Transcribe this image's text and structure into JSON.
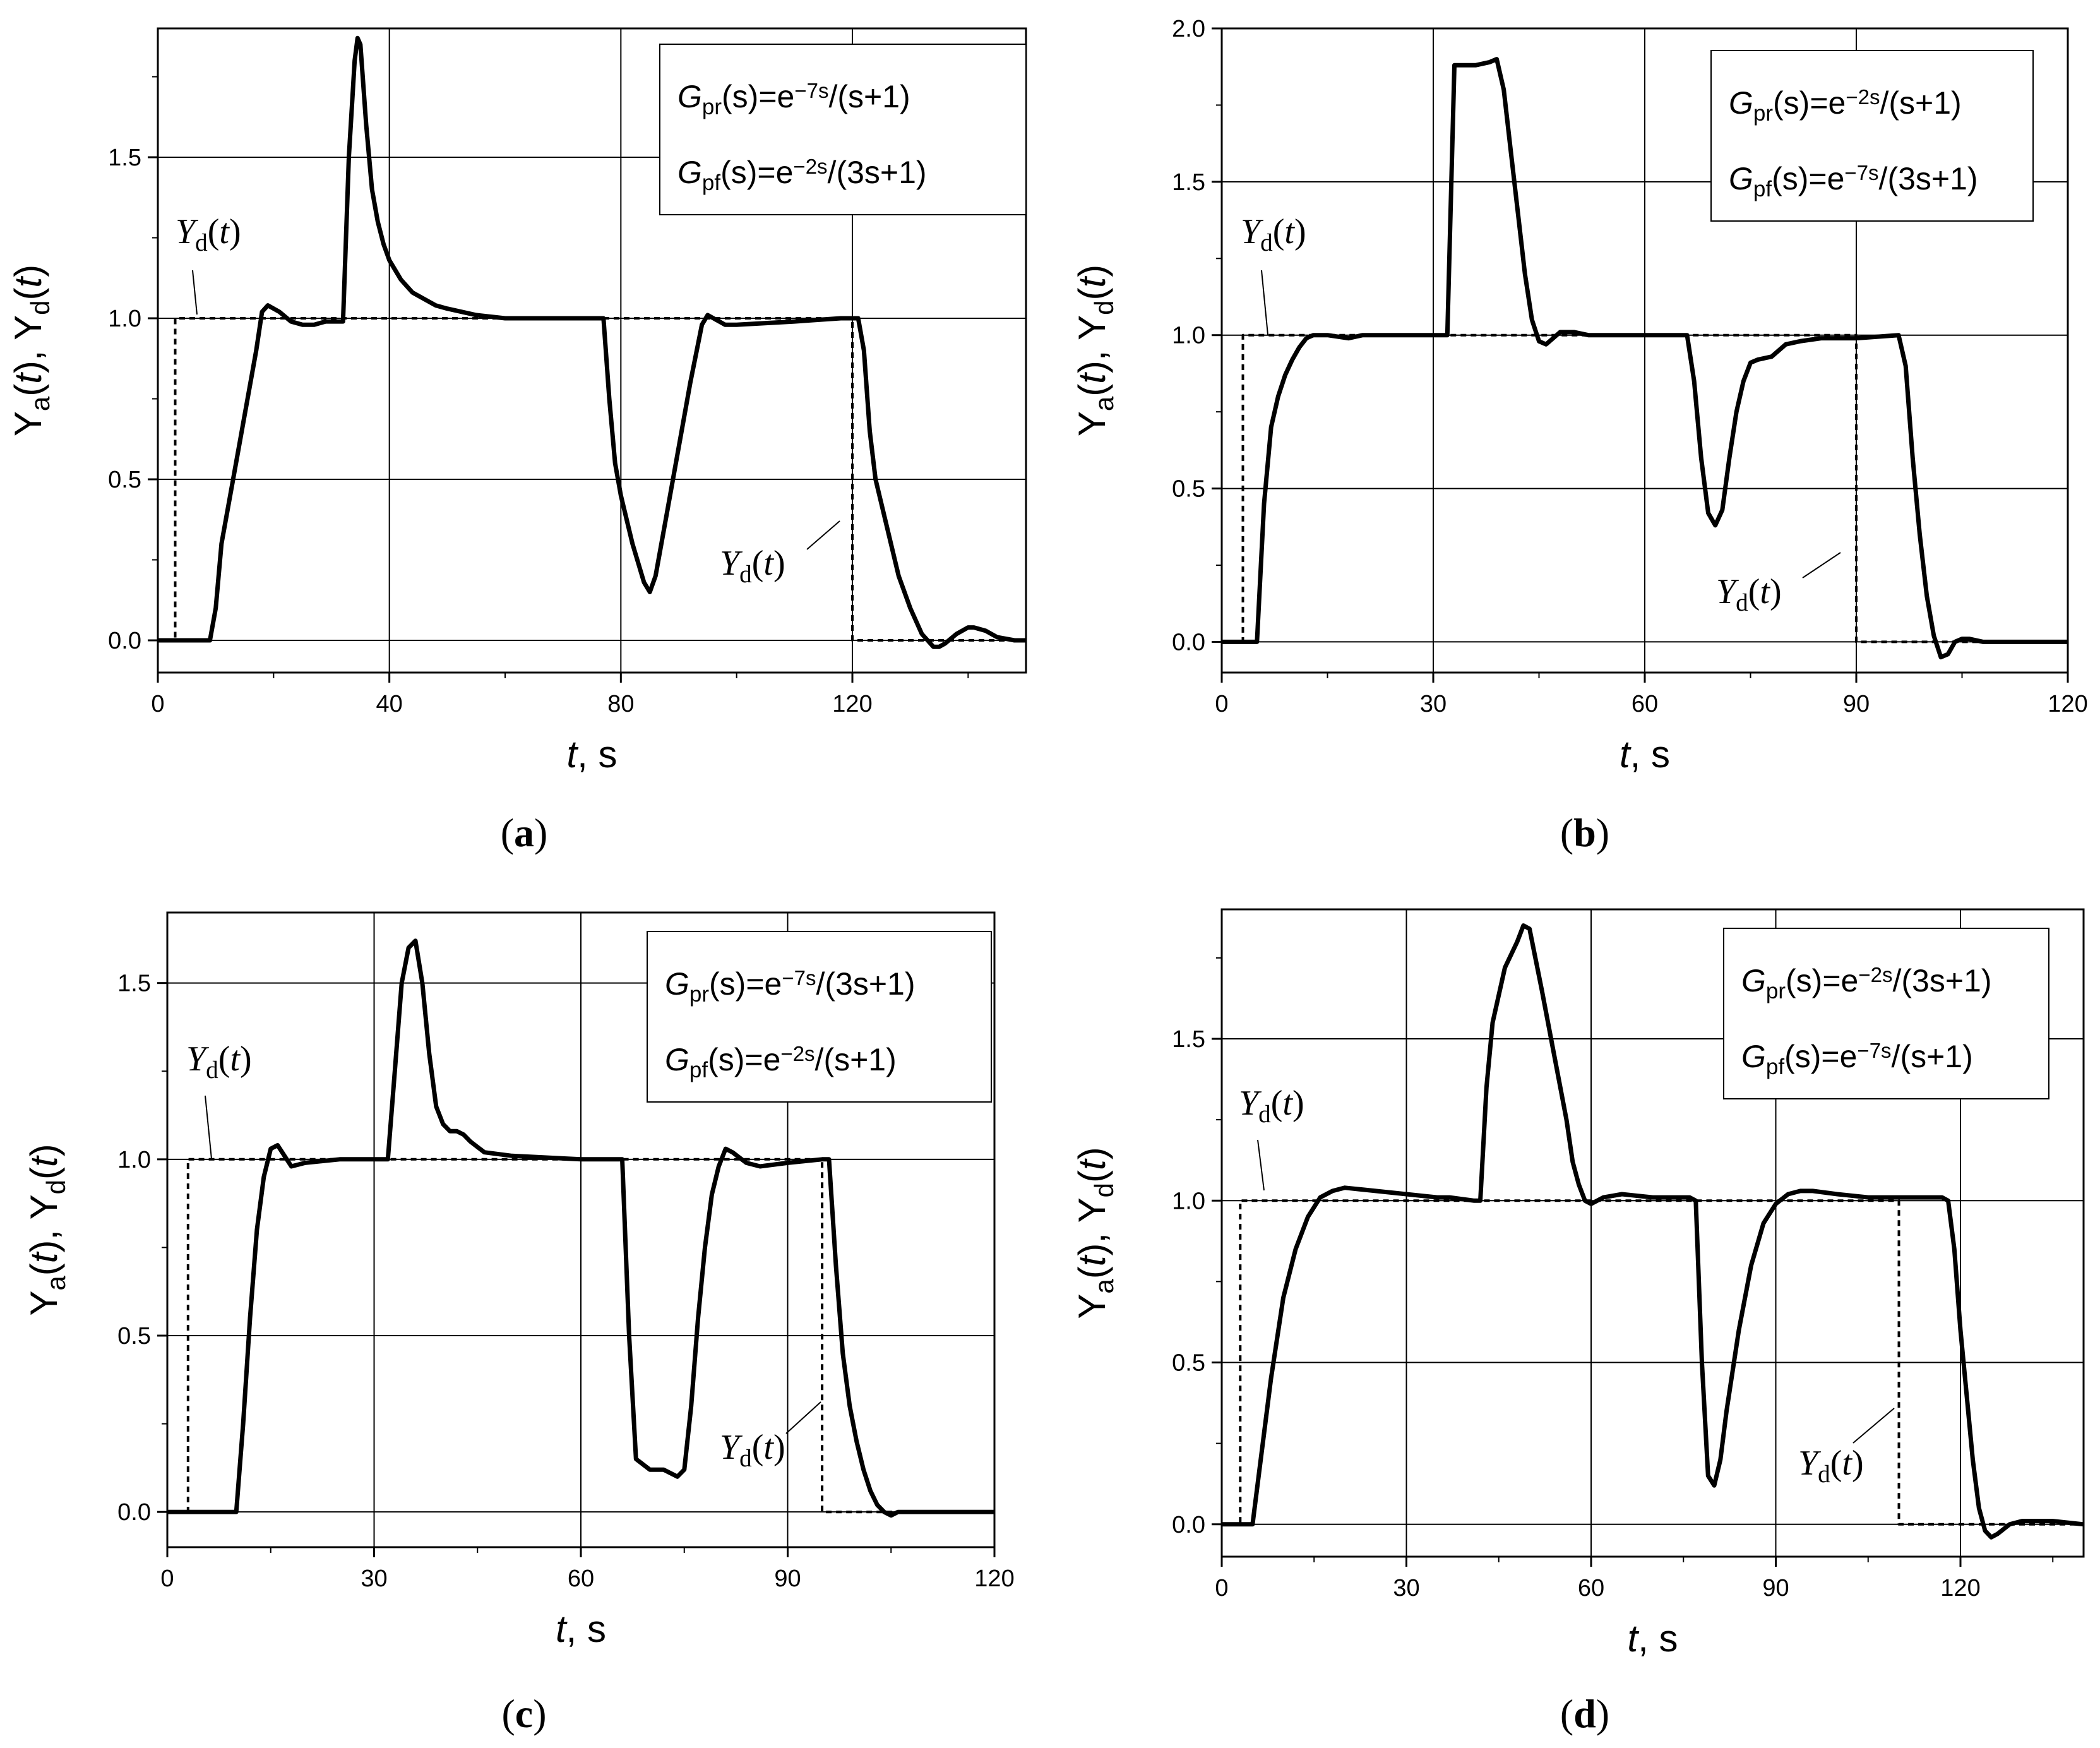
{
  "colors": {
    "line": "#000000",
    "grid": "#000000",
    "background": "#ffffff"
  },
  "chart_data": [
    {
      "type": "line",
      "panel": "a",
      "panel_label": [
        "(",
        "a",
        ")"
      ],
      "xlabel": [
        "t",
        ", s"
      ],
      "ylabel": [
        "Y",
        "a",
        "(",
        "t",
        "),  ",
        "Y",
        "d",
        "(",
        "t",
        ")"
      ],
      "xlim": [
        0,
        150
      ],
      "ylim": [
        -0.1,
        1.9
      ],
      "xticks": [
        0,
        40,
        80,
        120
      ],
      "yticks": [
        0.0,
        0.5,
        1.0,
        1.5
      ],
      "xtick_labels": [
        "0",
        "40",
        "80",
        "120"
      ],
      "ytick_labels": [
        "0.0",
        "0.5",
        "1.0",
        "1.5"
      ],
      "grid": true,
      "legend": [
        [
          "G",
          "pr",
          "(s)=e",
          "−7s",
          "/(s+1)"
        ],
        [
          "G",
          "pf",
          "(s)=e",
          "−2s",
          "/(3s+1)"
        ]
      ],
      "annotations": [
        [
          "Y",
          "d",
          "(",
          "t",
          ")"
        ],
        [
          "Y",
          "d",
          "(",
          "t",
          ")"
        ]
      ],
      "series": [
        {
          "style": "solid",
          "x": [
            0,
            9,
            10,
            11,
            13,
            15,
            17,
            18,
            19,
            21,
            23,
            25,
            27,
            29,
            31,
            32,
            33,
            34,
            34.5,
            35,
            36,
            37,
            38,
            39,
            40,
            42,
            44,
            46,
            48,
            50,
            55,
            60,
            70,
            77,
            78,
            79,
            80,
            82,
            84,
            85,
            86,
            88,
            90,
            92,
            94,
            95,
            96,
            98,
            100,
            110,
            118,
            121,
            122,
            123,
            124,
            126,
            128,
            130,
            132,
            134,
            135,
            136,
            138,
            140,
            141,
            143,
            145,
            148,
            150
          ],
          "y": [
            0,
            0,
            0.1,
            0.3,
            0.5,
            0.7,
            0.9,
            1.02,
            1.04,
            1.02,
            0.99,
            0.98,
            0.98,
            0.99,
            0.99,
            0.99,
            1.5,
            1.8,
            1.87,
            1.85,
            1.6,
            1.4,
            1.3,
            1.23,
            1.18,
            1.12,
            1.08,
            1.06,
            1.04,
            1.03,
            1.01,
            1.0,
            1.0,
            1.0,
            0.75,
            0.55,
            0.45,
            0.3,
            0.18,
            0.15,
            0.2,
            0.4,
            0.6,
            0.8,
            0.98,
            1.01,
            1.0,
            0.98,
            0.98,
            0.99,
            1.0,
            1.0,
            0.9,
            0.65,
            0.5,
            0.35,
            0.2,
            0.1,
            0.02,
            -0.02,
            -0.02,
            -0.01,
            0.02,
            0.04,
            0.04,
            0.03,
            0.01,
            0.0,
            0.0
          ]
        },
        {
          "style": "dashed",
          "x": [
            0,
            3,
            3,
            120,
            120,
            150
          ],
          "y": [
            0,
            0,
            1,
            1,
            0,
            0
          ]
        }
      ]
    },
    {
      "type": "line",
      "panel": "b",
      "panel_label": [
        "(",
        "b",
        ")"
      ],
      "xlabel": [
        "t",
        ", s"
      ],
      "ylabel": [
        "Y",
        "a",
        "(",
        "t",
        "),  ",
        "Y",
        "d",
        "(",
        "t",
        ")"
      ],
      "xlim": [
        0,
        120
      ],
      "ylim": [
        -0.1,
        2.0
      ],
      "xticks": [
        0,
        30,
        60,
        90,
        120
      ],
      "yticks": [
        0.0,
        0.5,
        1.0,
        1.5,
        2.0
      ],
      "xtick_labels": [
        "0",
        "30",
        "60",
        "90",
        "120"
      ],
      "ytick_labels": [
        "0.0",
        "0.5",
        "1.0",
        "1.5",
        "2.0"
      ],
      "grid": true,
      "legend": [
        [
          "G",
          "pr",
          "(s)=e",
          "−2s",
          "/(s+1)"
        ],
        [
          "G",
          "pf",
          "(s)=e",
          "−7s",
          "/(3s+1)"
        ]
      ],
      "annotations": [
        [
          "Y",
          "d",
          "(",
          "t",
          ")"
        ],
        [
          "Y",
          "d",
          "(",
          "t",
          ")"
        ]
      ],
      "series": [
        {
          "style": "solid",
          "x": [
            0,
            5,
            6,
            7,
            8,
            9,
            10,
            11,
            12,
            13,
            15,
            18,
            20,
            25,
            30,
            32,
            33,
            34,
            36,
            38,
            39,
            40,
            41,
            42,
            43,
            44,
            45,
            46,
            47,
            48,
            50,
            52,
            55,
            60,
            66,
            67,
            68,
            69,
            70,
            71,
            72,
            73,
            74,
            75,
            76,
            78,
            80,
            82,
            85,
            90,
            96,
            97,
            98,
            99,
            100,
            101,
            102,
            103,
            104,
            105,
            106,
            108,
            110,
            115,
            120
          ],
          "y": [
            0,
            0,
            0.45,
            0.7,
            0.8,
            0.87,
            0.92,
            0.96,
            0.99,
            1.0,
            1.0,
            0.99,
            1.0,
            1.0,
            1.0,
            1.0,
            1.88,
            1.88,
            1.88,
            1.89,
            1.9,
            1.8,
            1.6,
            1.4,
            1.2,
            1.05,
            0.98,
            0.97,
            0.99,
            1.01,
            1.01,
            1.0,
            1.0,
            1.0,
            1.0,
            0.85,
            0.6,
            0.42,
            0.38,
            0.43,
            0.6,
            0.75,
            0.85,
            0.91,
            0.92,
            0.93,
            0.97,
            0.98,
            0.99,
            0.99,
            1.0,
            0.9,
            0.6,
            0.35,
            0.15,
            0.02,
            -0.05,
            -0.04,
            0.0,
            0.01,
            0.01,
            0.0,
            0.0,
            0.0,
            0.0
          ]
        },
        {
          "style": "dashed",
          "x": [
            0,
            3,
            3,
            90,
            90,
            120
          ],
          "y": [
            0,
            0,
            1,
            1,
            0,
            0
          ]
        }
      ]
    },
    {
      "type": "line",
      "panel": "c",
      "panel_label": [
        "(",
        "c",
        ")"
      ],
      "xlabel": [
        "t",
        ", s"
      ],
      "ylabel": [
        "Y",
        "a",
        "(",
        "t",
        "),  ",
        "Y",
        "d",
        "(",
        "t",
        ")"
      ],
      "xlim": [
        0,
        120
      ],
      "ylim": [
        -0.1,
        1.7
      ],
      "xticks": [
        0,
        30,
        60,
        90,
        120
      ],
      "yticks": [
        0.0,
        0.5,
        1.0,
        1.5
      ],
      "xtick_labels": [
        "0",
        "30",
        "60",
        "90",
        "120"
      ],
      "ytick_labels": [
        "0.0",
        "0.5",
        "1.0",
        "1.5"
      ],
      "grid": true,
      "legend": [
        [
          "G",
          "pr",
          "(s)=e",
          "−7s",
          "/(3s+1)"
        ],
        [
          "G",
          "pf",
          "(s)=e",
          "−2s",
          "/(s+1)"
        ]
      ],
      "annotations": [
        [
          "Y",
          "d",
          "(",
          "t",
          ")"
        ],
        [
          "Y",
          "d",
          "(",
          "t",
          ")"
        ]
      ],
      "series": [
        {
          "style": "solid",
          "x": [
            0,
            10,
            11,
            12,
            13,
            14,
            15,
            16,
            17,
            18,
            20,
            25,
            30,
            32,
            33,
            34,
            35,
            36,
            37,
            38,
            39,
            40,
            41,
            42,
            43,
            44,
            46,
            50,
            60,
            66,
            67,
            68,
            70,
            72,
            74,
            75,
            76,
            77,
            78,
            79,
            80,
            81,
            82,
            84,
            86,
            90,
            95,
            96,
            97,
            98,
            99,
            100,
            101,
            102,
            103,
            104,
            105,
            106,
            108,
            110,
            115,
            120
          ],
          "y": [
            0,
            0,
            0.25,
            0.55,
            0.8,
            0.95,
            1.03,
            1.04,
            1.01,
            0.98,
            0.99,
            1.0,
            1.0,
            1.0,
            1.25,
            1.5,
            1.6,
            1.62,
            1.5,
            1.3,
            1.15,
            1.1,
            1.08,
            1.08,
            1.07,
            1.05,
            1.02,
            1.01,
            1.0,
            1.0,
            0.5,
            0.15,
            0.12,
            0.12,
            0.1,
            0.12,
            0.3,
            0.55,
            0.75,
            0.9,
            0.98,
            1.03,
            1.02,
            0.99,
            0.98,
            0.99,
            1.0,
            1.0,
            0.7,
            0.45,
            0.3,
            0.2,
            0.12,
            0.06,
            0.02,
            0.0,
            -0.01,
            0.0,
            0.0,
            0.0,
            0.0,
            0.0
          ]
        },
        {
          "style": "dashed",
          "x": [
            0,
            3,
            3,
            95,
            95,
            120
          ],
          "y": [
            0,
            0,
            1,
            1,
            0,
            0
          ]
        }
      ]
    },
    {
      "type": "line",
      "panel": "d",
      "panel_label": [
        "(",
        "d",
        ")"
      ],
      "xlabel": [
        "t",
        ", s"
      ],
      "ylabel": [
        "Y",
        "a",
        "(",
        "t",
        "),  ",
        "Y",
        "d",
        "(",
        "t",
        ")"
      ],
      "xlim": [
        0,
        140
      ],
      "ylim": [
        -0.1,
        1.9
      ],
      "xticks": [
        0,
        30,
        60,
        90,
        120
      ],
      "yticks": [
        0.0,
        0.5,
        1.0,
        1.5
      ],
      "xtick_labels": [
        "0",
        "30",
        "60",
        "90",
        "120"
      ],
      "ytick_labels": [
        "0.0",
        "0.5",
        "1.0",
        "1.5"
      ],
      "grid": true,
      "legend": [
        [
          "G",
          "pr",
          "(s)=e",
          "−2s",
          "/(3s+1)"
        ],
        [
          "G",
          "pf",
          "(s)=e",
          "−7s",
          "/(s+1)"
        ]
      ],
      "annotations": [
        [
          "Y",
          "d",
          "(",
          "t",
          ")"
        ],
        [
          "Y",
          "d",
          "(",
          "t",
          ")"
        ]
      ],
      "series": [
        {
          "style": "solid",
          "x": [
            0,
            5,
            6,
            8,
            10,
            12,
            14,
            16,
            18,
            20,
            25,
            30,
            35,
            37,
            41,
            42,
            43,
            44,
            46,
            48,
            49,
            50,
            52,
            54,
            56,
            57,
            58,
            59,
            60,
            62,
            65,
            70,
            76,
            77,
            78,
            79,
            80,
            81,
            82,
            84,
            86,
            88,
            90,
            92,
            94,
            96,
            100,
            105,
            110,
            117,
            118,
            119,
            120,
            121,
            122,
            123,
            124,
            125,
            126,
            128,
            130,
            135,
            140
          ],
          "y": [
            0,
            0,
            0.15,
            0.45,
            0.7,
            0.85,
            0.95,
            1.01,
            1.03,
            1.04,
            1.03,
            1.02,
            1.01,
            1.01,
            1.0,
            1.0,
            1.35,
            1.55,
            1.72,
            1.8,
            1.85,
            1.84,
            1.65,
            1.45,
            1.25,
            1.12,
            1.05,
            1.0,
            0.99,
            1.01,
            1.02,
            1.01,
            1.01,
            1.0,
            0.5,
            0.15,
            0.12,
            0.2,
            0.35,
            0.6,
            0.8,
            0.93,
            0.99,
            1.02,
            1.03,
            1.03,
            1.02,
            1.01,
            1.01,
            1.01,
            1.0,
            0.85,
            0.6,
            0.4,
            0.2,
            0.05,
            -0.02,
            -0.04,
            -0.03,
            0.0,
            0.01,
            0.01,
            0.0
          ]
        },
        {
          "style": "dashed",
          "x": [
            0,
            3,
            3,
            110,
            110,
            140
          ],
          "y": [
            0,
            0,
            1,
            1,
            0,
            0
          ]
        }
      ]
    }
  ]
}
